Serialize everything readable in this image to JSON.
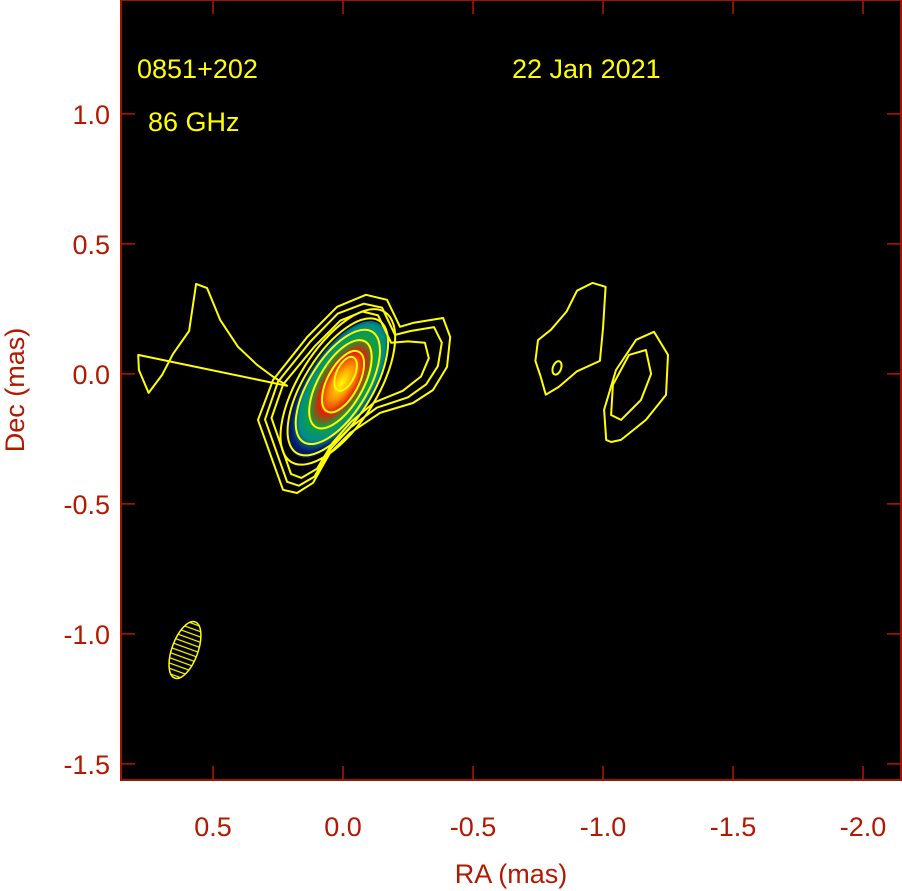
{
  "chart_data": {
    "type": "contour",
    "xlabel": "RA (mas)",
    "ylabel": "Dec (mas)",
    "xlim": [
      0.854,
      -2.146
    ],
    "ylim": [
      -1.562,
      1.438
    ],
    "x_ticks": [
      0.5,
      0.0,
      -0.5,
      -1.0,
      -1.5,
      -2.0
    ],
    "x_tick_labels": [
      "0.5",
      "0.0",
      "-0.5",
      "-1.0",
      "-1.5",
      "-2.0"
    ],
    "y_ticks": [
      1.0,
      0.5,
      0.0,
      -0.5,
      -1.0,
      -1.5
    ],
    "y_tick_labels": [
      "1.0",
      "0.5",
      "0.0",
      "-0.5",
      "-1.0",
      "-1.5"
    ],
    "grid": false,
    "annotations": {
      "source": "0851+202",
      "frequency": "86 GHz",
      "date": "22 Jan 2021"
    },
    "colors": {
      "background": "#000000",
      "axes": "#b31800",
      "contours": "#ffff00",
      "colormap": [
        "#001a66",
        "#008c8c",
        "#00a040",
        "#ff2000",
        "#ff8000",
        "#ffff00"
      ]
    },
    "contour_paths": [
      [
        [
          0.231,
          -0.446
        ],
        [
          0.327,
          -0.177
        ],
        [
          0.269,
          -0.023
        ],
        [
          0.138,
          0.142
        ],
        [
          0.023,
          0.258
        ],
        [
          -0.088,
          0.304
        ],
        [
          -0.169,
          0.285
        ],
        [
          -0.219,
          0.181
        ],
        [
          -0.269,
          0.196
        ],
        [
          -0.385,
          0.215
        ],
        [
          -0.412,
          0.142
        ],
        [
          -0.4,
          0.027
        ],
        [
          -0.346,
          -0.062
        ],
        [
          -0.269,
          -0.112
        ],
        [
          -0.142,
          -0.15
        ],
        [
          -0.027,
          -0.227
        ],
        [
          0.05,
          -0.304
        ],
        [
          0.115,
          -0.419
        ],
        [
          0.177,
          -0.458
        ]
      ],
      [
        [
          0.215,
          -0.415
        ],
        [
          0.3,
          -0.175
        ],
        [
          0.25,
          -0.03
        ],
        [
          0.125,
          0.125
        ],
        [
          0.02,
          0.232
        ],
        [
          -0.08,
          0.27
        ],
        [
          -0.15,
          0.255
        ],
        [
          -0.2,
          0.15
        ],
        [
          -0.26,
          0.165
        ],
        [
          -0.35,
          0.18
        ],
        [
          -0.38,
          0.12
        ],
        [
          -0.365,
          0.03
        ],
        [
          -0.32,
          -0.04
        ],
        [
          -0.25,
          -0.09
        ],
        [
          -0.13,
          -0.13
        ],
        [
          -0.03,
          -0.205
        ],
        [
          0.045,
          -0.285
        ],
        [
          0.11,
          -0.395
        ],
        [
          0.17,
          -0.43
        ]
      ],
      [
        [
          0.2,
          -0.385
        ],
        [
          0.275,
          -0.17
        ],
        [
          0.23,
          -0.04
        ],
        [
          0.11,
          0.105
        ],
        [
          0.01,
          0.205
        ],
        [
          -0.075,
          0.24
        ],
        [
          -0.135,
          0.225
        ],
        [
          -0.185,
          0.12
        ],
        [
          -0.25,
          0.125
        ],
        [
          -0.315,
          0.12
        ],
        [
          -0.33,
          0.06
        ],
        [
          -0.3,
          -0.01
        ],
        [
          -0.23,
          -0.065
        ],
        [
          -0.12,
          -0.11
        ],
        [
          -0.03,
          -0.185
        ],
        [
          0.04,
          -0.265
        ],
        [
          0.1,
          -0.365
        ],
        [
          0.16,
          -0.4
        ]
      ],
      [
        [
          0.788,
          0.073
        ],
        [
          0.785,
          0.015
        ],
        [
          0.748,
          -0.073
        ],
        [
          0.696,
          -0.004
        ],
        [
          0.654,
          0.077
        ],
        [
          0.592,
          0.165
        ],
        [
          0.565,
          0.346
        ],
        [
          0.523,
          0.33
        ],
        [
          0.473,
          0.208
        ],
        [
          0.404,
          0.104
        ],
        [
          0.331,
          0.035
        ],
        [
          0.273,
          -0.008
        ],
        [
          0.215,
          -0.046
        ]
      ],
      [
        [
          -0.988,
          0.05
        ],
        [
          -1.0,
          0.175
        ],
        [
          -1.01,
          0.335
        ],
        [
          -0.96,
          0.35
        ],
        [
          -0.9,
          0.32
        ],
        [
          -0.86,
          0.24
        ],
        [
          -0.8,
          0.17
        ],
        [
          -0.75,
          0.13
        ],
        [
          -0.74,
          0.05
        ],
        [
          -0.76,
          -0.01
        ],
        [
          -0.78,
          -0.08
        ],
        [
          -0.83,
          -0.05
        ],
        [
          -0.9,
          0.01
        ]
      ],
      [
        [
          -1.012,
          -0.254
        ],
        [
          -1.004,
          -0.138
        ],
        [
          -1.05,
          0.015
        ],
        [
          -1.127,
          0.131
        ],
        [
          -1.196,
          0.162
        ],
        [
          -1.25,
          0.073
        ],
        [
          -1.242,
          -0.081
        ],
        [
          -1.165,
          -0.177
        ],
        [
          -1.069,
          -0.254
        ],
        [
          -1.031,
          -0.262
        ]
      ],
      [
        [
          -1.031,
          -0.158
        ],
        [
          -1.038,
          -0.042
        ],
        [
          -1.1,
          0.073
        ],
        [
          -1.165,
          0.092
        ],
        [
          -1.185,
          0.0
        ],
        [
          -1.146,
          -0.1
        ],
        [
          -1.069,
          -0.177
        ]
      ]
    ],
    "contour_ellipses": [
      {
        "ra": 0.02,
        "dec": -0.05,
        "a": 0.34,
        "b": 0.15,
        "pa_deg": -32
      },
      {
        "ra": 0.02,
        "dec": -0.05,
        "a": 0.3,
        "b": 0.13,
        "pa_deg": -32
      },
      {
        "ra": 0.02,
        "dec": -0.05,
        "a": 0.25,
        "b": 0.11,
        "pa_deg": -32
      },
      {
        "ra": 0.01,
        "dec": -0.04,
        "a": 0.19,
        "b": 0.085,
        "pa_deg": -30
      },
      {
        "ra": 0.0,
        "dec": -0.03,
        "a": 0.13,
        "b": 0.06,
        "pa_deg": -28
      },
      {
        "ra": -0.01,
        "dec": 0.0,
        "a": 0.07,
        "b": 0.035,
        "pa_deg": -25
      },
      {
        "ra": -0.823,
        "dec": 0.023,
        "a": 0.027,
        "b": 0.016,
        "pa_deg": -20
      }
    ],
    "intensity_image": {
      "ra": 0.02,
      "dec": -0.06,
      "a": 0.3,
      "b": 0.13,
      "pa_deg": -32
    },
    "beam": {
      "ra": 0.608,
      "dec": -1.062,
      "major": 0.23,
      "minor": 0.1,
      "pa_deg": -20
    }
  }
}
